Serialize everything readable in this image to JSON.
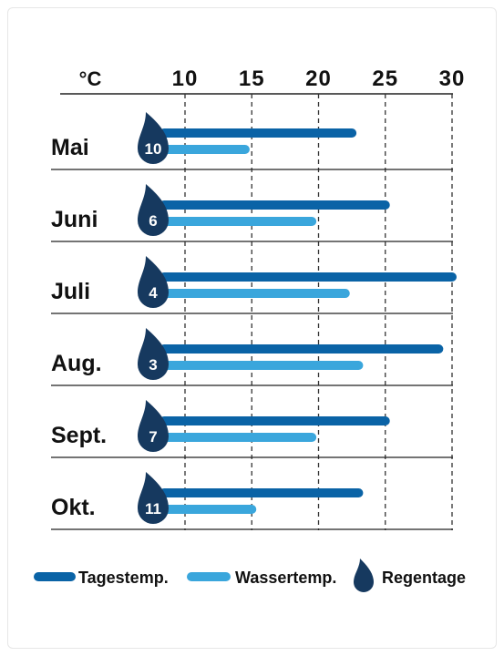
{
  "chart_data": {
    "type": "bar",
    "unit": "°C",
    "x_ticks": [
      10,
      15,
      20,
      25,
      30
    ],
    "xlim": [
      10,
      30
    ],
    "categories": [
      "Mai",
      "Juni",
      "Juli",
      "Aug.",
      "Sept.",
      "Okt."
    ],
    "series": [
      {
        "name": "Tagestemp.",
        "values": [
          22.5,
          25,
          30,
          29,
          25,
          23
        ]
      },
      {
        "name": "Wassertemp.",
        "values": [
          14.5,
          19.5,
          22,
          23,
          19.5,
          15
        ]
      }
    ],
    "rain_days": {
      "name": "Regentage",
      "values": [
        10,
        6,
        4,
        3,
        7,
        11
      ]
    },
    "colors": {
      "day": "#0a63a6",
      "water": "#3aa6dc",
      "drop": "#16395f",
      "grid": "#333333",
      "separator": "#222222"
    },
    "grid": true,
    "legend_position": "bottom"
  }
}
